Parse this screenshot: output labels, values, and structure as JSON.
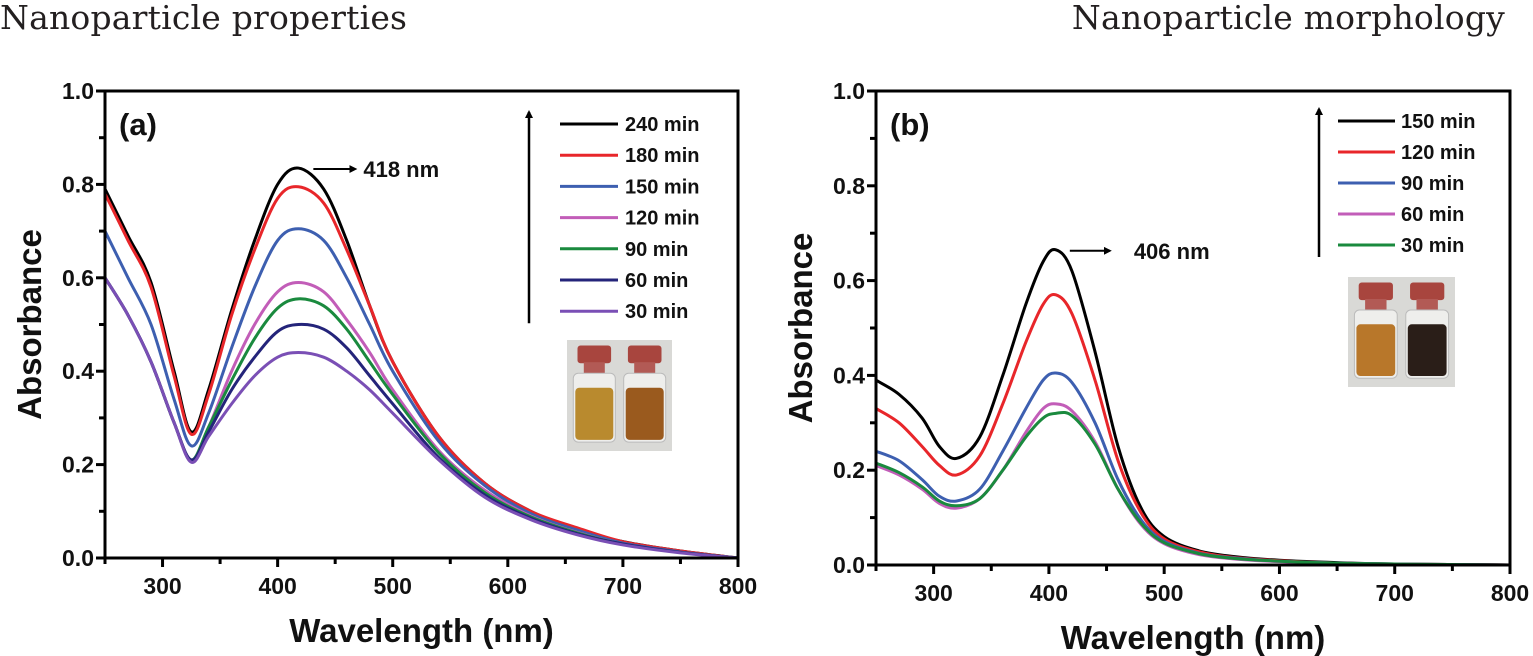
{
  "headings": {
    "left": "Nanoparticle properties",
    "right": "Nanoparticle morphology"
  },
  "chart_data": [
    {
      "type": "line",
      "panel_label": "(a)",
      "title": "",
      "xlabel": "Wavelength (nm)",
      "ylabel": "Absorbance",
      "xlim": [
        250,
        800
      ],
      "ylim": [
        0.0,
        1.0
      ],
      "xticks": [
        300,
        400,
        500,
        600,
        700,
        800
      ],
      "xtick_labels": [
        "300",
        "400",
        "500",
        "600",
        "700",
        "800"
      ],
      "yticks": [
        0.0,
        0.2,
        0.4,
        0.6,
        0.8,
        1.0
      ],
      "ytick_labels": [
        "0.0",
        "0.2",
        "0.4",
        "0.6",
        "0.8",
        "1.0"
      ],
      "grid": false,
      "legend_position": "top-right",
      "legend_arrow": "up",
      "annotation": {
        "text": "418 nm",
        "x": 418,
        "y": 0.835
      },
      "inset": "photo of two vials with amber-colored solutions",
      "inset_colors": [
        "#b98a2e",
        "#9a5a1e"
      ],
      "series": [
        {
          "name": "240 min",
          "color": "#000000",
          "x": [
            250,
            270,
            290,
            310,
            325,
            340,
            360,
            380,
            400,
            418,
            440,
            460,
            480,
            500,
            540,
            580,
            620,
            660,
            700,
            750,
            800
          ],
          "y": [
            0.79,
            0.69,
            0.59,
            0.4,
            0.27,
            0.36,
            0.53,
            0.68,
            0.8,
            0.835,
            0.79,
            0.68,
            0.54,
            0.42,
            0.26,
            0.16,
            0.1,
            0.06,
            0.035,
            0.015,
            0.0
          ]
        },
        {
          "name": "180 min",
          "color": "#e8262a",
          "x": [
            250,
            270,
            290,
            310,
            325,
            340,
            360,
            380,
            400,
            418,
            440,
            460,
            480,
            500,
            540,
            580,
            620,
            660,
            700,
            750,
            800
          ],
          "y": [
            0.78,
            0.68,
            0.58,
            0.39,
            0.265,
            0.35,
            0.52,
            0.66,
            0.77,
            0.795,
            0.76,
            0.66,
            0.54,
            0.42,
            0.26,
            0.16,
            0.1,
            0.065,
            0.035,
            0.015,
            0.0
          ]
        },
        {
          "name": "150 min",
          "color": "#3d5fb0",
          "x": [
            250,
            270,
            290,
            310,
            325,
            340,
            360,
            380,
            400,
            418,
            440,
            460,
            480,
            500,
            540,
            580,
            620,
            660,
            700,
            750,
            800
          ],
          "y": [
            0.7,
            0.6,
            0.5,
            0.34,
            0.24,
            0.31,
            0.45,
            0.58,
            0.68,
            0.705,
            0.68,
            0.6,
            0.5,
            0.4,
            0.25,
            0.155,
            0.095,
            0.06,
            0.032,
            0.013,
            0.0
          ]
        },
        {
          "name": "120 min",
          "color": "#c25db8",
          "x": [
            250,
            270,
            290,
            310,
            325,
            340,
            360,
            380,
            400,
            418,
            440,
            460,
            480,
            500,
            540,
            580,
            620,
            660,
            700,
            750,
            800
          ],
          "y": [
            0.6,
            0.52,
            0.42,
            0.29,
            0.21,
            0.28,
            0.4,
            0.5,
            0.57,
            0.59,
            0.57,
            0.51,
            0.44,
            0.36,
            0.23,
            0.145,
            0.09,
            0.055,
            0.03,
            0.012,
            0.0
          ]
        },
        {
          "name": "90 min",
          "color": "#1a8a3e",
          "x": [
            250,
            270,
            290,
            310,
            325,
            340,
            360,
            380,
            400,
            418,
            440,
            460,
            480,
            500,
            540,
            580,
            620,
            660,
            700,
            750,
            800
          ],
          "y": [
            0.6,
            0.52,
            0.42,
            0.29,
            0.21,
            0.28,
            0.38,
            0.47,
            0.535,
            0.555,
            0.54,
            0.49,
            0.42,
            0.35,
            0.225,
            0.14,
            0.088,
            0.054,
            0.03,
            0.012,
            0.0
          ]
        },
        {
          "name": "60 min",
          "color": "#24247a",
          "x": [
            250,
            270,
            290,
            310,
            325,
            340,
            360,
            380,
            400,
            418,
            440,
            460,
            480,
            500,
            540,
            580,
            620,
            660,
            700,
            750,
            800
          ],
          "y": [
            0.6,
            0.52,
            0.42,
            0.29,
            0.21,
            0.27,
            0.36,
            0.43,
            0.485,
            0.5,
            0.49,
            0.45,
            0.39,
            0.33,
            0.215,
            0.135,
            0.085,
            0.052,
            0.03,
            0.012,
            0.0
          ]
        },
        {
          "name": "30 min",
          "color": "#7a4fb5",
          "x": [
            250,
            270,
            290,
            310,
            325,
            340,
            360,
            380,
            400,
            418,
            440,
            460,
            480,
            500,
            540,
            580,
            620,
            660,
            700,
            750,
            800
          ],
          "y": [
            0.6,
            0.52,
            0.42,
            0.29,
            0.205,
            0.26,
            0.33,
            0.39,
            0.43,
            0.44,
            0.43,
            0.4,
            0.36,
            0.31,
            0.21,
            0.13,
            0.082,
            0.05,
            0.028,
            0.011,
            0.0
          ]
        }
      ]
    },
    {
      "type": "line",
      "panel_label": "(b)",
      "title": "",
      "xlabel": "Wavelength (nm)",
      "ylabel": "Absorbance",
      "xlim": [
        250,
        800
      ],
      "ylim": [
        0.0,
        1.0
      ],
      "xticks": [
        300,
        400,
        500,
        600,
        700,
        800
      ],
      "xtick_labels": [
        "300",
        "400",
        "500",
        "600",
        "700",
        "800"
      ],
      "yticks": [
        0.0,
        0.2,
        0.4,
        0.6,
        0.8,
        1.0
      ],
      "ytick_labels": [
        "0.0",
        "0.2",
        "0.4",
        "0.6",
        "0.8",
        "1.0"
      ],
      "grid": false,
      "legend_position": "top-right",
      "legend_arrow": "up",
      "annotation": {
        "text": "406 nm",
        "x": 406,
        "y": 0.665
      },
      "inset": "photo of two vials: amber solution and dark solution",
      "inset_colors": [
        "#b8772a",
        "#2a1e18"
      ],
      "series": [
        {
          "name": "150 min",
          "color": "#000000",
          "x": [
            250,
            270,
            290,
            305,
            320,
            340,
            360,
            380,
            395,
            406,
            420,
            440,
            460,
            480,
            500,
            530,
            560,
            600,
            650,
            700,
            800
          ],
          "y": [
            0.39,
            0.36,
            0.31,
            0.25,
            0.225,
            0.27,
            0.4,
            0.55,
            0.64,
            0.665,
            0.62,
            0.45,
            0.25,
            0.12,
            0.06,
            0.03,
            0.018,
            0.01,
            0.005,
            0.002,
            0.0
          ]
        },
        {
          "name": "120 min",
          "color": "#e8262a",
          "x": [
            250,
            270,
            290,
            305,
            320,
            340,
            360,
            380,
            395,
            406,
            420,
            440,
            460,
            480,
            500,
            530,
            560,
            600,
            650,
            700,
            800
          ],
          "y": [
            0.33,
            0.3,
            0.25,
            0.21,
            0.19,
            0.23,
            0.34,
            0.47,
            0.55,
            0.57,
            0.53,
            0.39,
            0.22,
            0.11,
            0.055,
            0.028,
            0.016,
            0.009,
            0.004,
            0.002,
            0.0
          ]
        },
        {
          "name": "90 min",
          "color": "#3d5fb0",
          "x": [
            250,
            270,
            290,
            305,
            320,
            340,
            360,
            380,
            395,
            406,
            420,
            440,
            460,
            480,
            500,
            530,
            560,
            600,
            650,
            700,
            800
          ],
          "y": [
            0.24,
            0.22,
            0.18,
            0.145,
            0.135,
            0.16,
            0.24,
            0.33,
            0.39,
            0.405,
            0.385,
            0.3,
            0.18,
            0.095,
            0.05,
            0.025,
            0.015,
            0.008,
            0.004,
            0.002,
            0.0
          ]
        },
        {
          "name": "60 min",
          "color": "#c25db8",
          "x": [
            250,
            270,
            290,
            305,
            320,
            340,
            360,
            380,
            395,
            406,
            420,
            440,
            460,
            480,
            500,
            530,
            560,
            600,
            650,
            700,
            800
          ],
          "y": [
            0.21,
            0.19,
            0.16,
            0.13,
            0.12,
            0.14,
            0.2,
            0.28,
            0.33,
            0.34,
            0.325,
            0.26,
            0.16,
            0.085,
            0.045,
            0.022,
            0.013,
            0.007,
            0.003,
            0.001,
            0.0
          ]
        },
        {
          "name": "30 min",
          "color": "#1a8a3e",
          "x": [
            250,
            270,
            290,
            305,
            320,
            340,
            360,
            380,
            395,
            406,
            420,
            440,
            460,
            480,
            500,
            530,
            560,
            600,
            650,
            700,
            800
          ],
          "y": [
            0.215,
            0.195,
            0.165,
            0.135,
            0.125,
            0.14,
            0.2,
            0.27,
            0.31,
            0.32,
            0.315,
            0.255,
            0.16,
            0.088,
            0.047,
            0.024,
            0.014,
            0.008,
            0.004,
            0.002,
            0.0
          ]
        }
      ]
    }
  ]
}
